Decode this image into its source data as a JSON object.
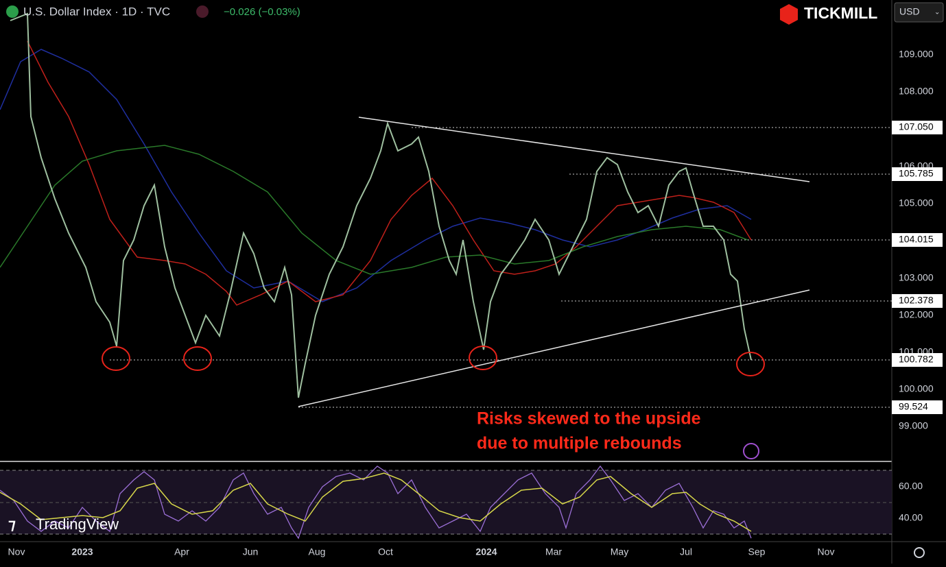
{
  "header": {
    "symbol": "U.S. Dollar Index · 1D · TVC",
    "change": "−0.026 (−0.03%)",
    "brand": "TICKMILL",
    "currency": "USD"
  },
  "price_axis": {
    "labels": [
      "109.000",
      "108.000",
      "106.000",
      "105.000",
      "103.000",
      "102.000",
      "101.000",
      "100.000",
      "99.000"
    ]
  },
  "price_levels": [
    "107.050",
    "105.785",
    "104.015",
    "102.378",
    "100.782",
    "99.524"
  ],
  "annotation": {
    "lines": [
      "Risks skewed to the upside",
      "due to multiple rebounds"
    ]
  },
  "rsi_axis": {
    "labels": [
      "60.00",
      "40.00"
    ]
  },
  "time_axis": {
    "labels": [
      "Nov",
      "2023",
      "Apr",
      "Jun",
      "Aug",
      "Oct",
      "2024",
      "Mar",
      "May",
      "Jul",
      "Sep",
      "Nov"
    ]
  },
  "watermark": "TradingView"
}
